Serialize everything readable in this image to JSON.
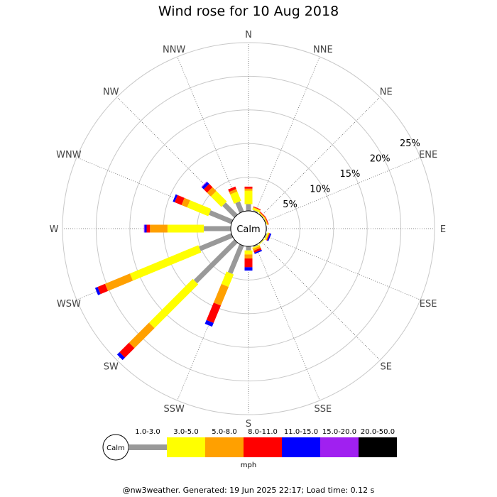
{
  "title": "Wind rose for 10 Aug 2018",
  "footer": "@nw3weather. Generated: 19 Jun 2025 22:17; Load time: 0.12 s",
  "chart_data": {
    "type": "windrose",
    "directions": [
      "N",
      "NNE",
      "NE",
      "ENE",
      "E",
      "ESE",
      "SE",
      "SSE",
      "S",
      "SSW",
      "SW",
      "WSW",
      "W",
      "WNW",
      "NW",
      "NNW"
    ],
    "rings_percent": [
      5,
      10,
      15,
      20,
      25
    ],
    "ring_labels": [
      "5%",
      "10%",
      "15%",
      "20%",
      "25%"
    ],
    "center_label": "Calm",
    "unit": "mph",
    "speed_bins": [
      {
        "label": "1.0-3.0",
        "color": "#999999"
      },
      {
        "label": "3.0-5.0",
        "color": "#ffff00"
      },
      {
        "label": "5.0-8.0",
        "color": "#ffa000"
      },
      {
        "label": "8.0-11.0",
        "color": "#ff0000"
      },
      {
        "label": "11.0-15.0",
        "color": "#0000ff"
      },
      {
        "label": "15.0-20.0",
        "color": "#a020f0"
      },
      {
        "label": "20.0-50.0",
        "color": "#000000"
      }
    ],
    "frequencies_percent": [
      [
        1.0,
        2.0,
        0.3,
        0.3,
        0,
        0,
        0
      ],
      [
        0.2,
        0.3,
        0.1,
        0.1,
        0,
        0,
        0
      ],
      [
        0.1,
        0.1,
        0.1,
        0.1,
        0,
        0,
        0
      ],
      [
        0.1,
        0.1,
        0.1,
        0.1,
        0,
        0,
        0
      ],
      [
        0.1,
        0,
        0,
        0,
        0,
        0,
        0
      ],
      [
        0.2,
        0.2,
        0.1,
        0.1,
        0.2,
        0,
        0
      ],
      [
        0.1,
        0.1,
        0,
        0,
        0,
        0,
        0
      ],
      [
        0.2,
        0.2,
        0.3,
        0.3,
        0.2,
        0,
        0
      ],
      [
        0.6,
        0.6,
        0.6,
        1.3,
        0.5,
        0,
        0
      ],
      [
        4.5,
        2.0,
        3.0,
        2.8,
        0.6,
        0,
        0
      ],
      [
        8.5,
        9.2,
        4.2,
        2.0,
        0.5,
        0,
        0
      ],
      [
        5.2,
        11.0,
        4.0,
        1.2,
        0.4,
        0,
        0
      ],
      [
        4.0,
        5.4,
        2.6,
        0.5,
        0.3,
        0.1,
        0
      ],
      [
        3.6,
        3.4,
        0.9,
        1.1,
        0.3,
        0,
        0
      ],
      [
        2.5,
        2.2,
        0.8,
        0.7,
        0.4,
        0.1,
        0
      ],
      [
        1.6,
        1.5,
        0.4,
        0.4,
        0,
        0,
        0
      ]
    ]
  }
}
